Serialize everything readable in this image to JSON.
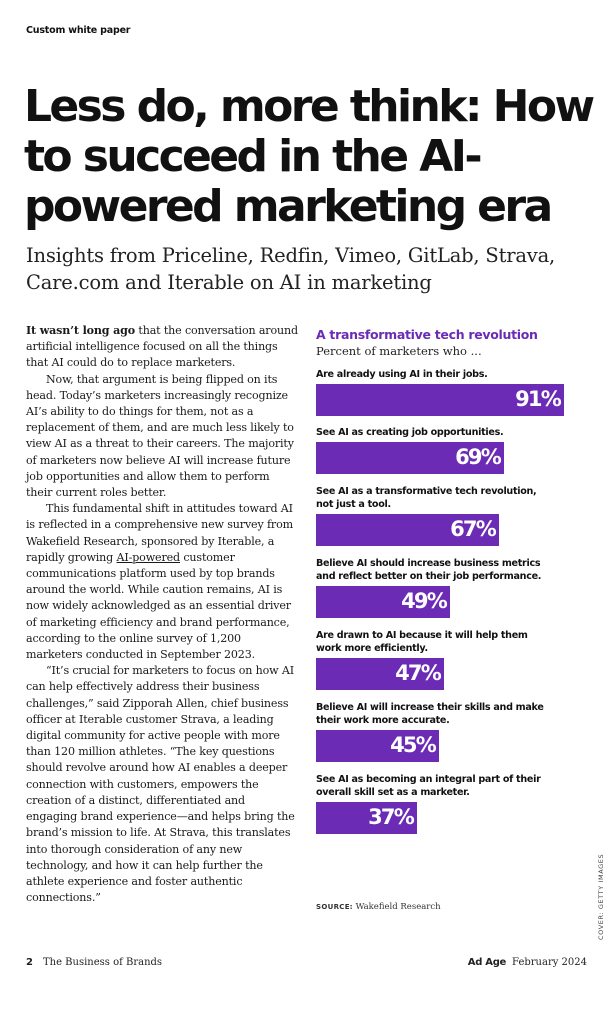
{
  "header": {
    "section_label": "Custom white paper"
  },
  "article": {
    "title": "Less do, more think: How to succeed in the AI-powered marketing era",
    "subtitle": "Insights from Priceline, Redfin, Vimeo, GitLab, Strava, Care.com and Iterable on AI in marketing",
    "p1_lead": "It wasn’t long ago",
    "p1_rest": " that the conversation around artificial intelligence focused on all the things that AI could do to replace marketers.",
    "p2": "Now, that argument is being flipped on its head. Today’s marketers increasingly recognize AI’s ability to do things for them, not as a replacement of them, and are much less likely to view AI as a threat to their careers. The majority of marketers now believe AI will increase future job opportunities and allow them to perform their current roles better.",
    "p3_before": "This fundamental shift in attitudes toward AI is reflected in a comprehensive new survey from Wakefield Research, sponsored by Iterable, a rapidly growing ",
    "p3_link": "AI-powered",
    "p3_after": " customer communications platform used by top brands around the world. While caution remains, AI is now widely acknowledged as an essential driver of marketing efficiency and brand performance, according to the online survey of 1,200 marketers conducted in September 2023.",
    "p4": "“It’s crucial for marketers to focus on how AI can help effectively address their business challenges,” said Zipporah Allen, chief business officer at Iterable customer Strava, a leading digital community for active people with more than 120 million athletes. “The key questions should revolve around how AI enables a deeper connection with customers, empowers the creation of a distinct, differentiated and engaging brand experience—and helps bring the brand’s mission to life. At Strava, this translates into thorough consideration of any new technology, and how it can help further the athlete experience and foster authentic connections.”"
  },
  "chart_data": {
    "type": "bar",
    "title": "A transformative tech revolution",
    "subtitle": "Percent of marketers who ...",
    "categories": [
      "Are already using AI in their jobs.",
      "See AI as creating job opportunities.",
      "See AI as a transformative tech revolution, not just a tool.",
      "Believe AI should increase business metrics and reflect better on their job performance.",
      "Are drawn to AI because it will help them work more efficiently.",
      "Believe AI will increase their skills and make their work more accurate.",
      "See AI as becoming an integral part of their overall skill set as a marketer."
    ],
    "values": [
      91,
      69,
      67,
      49,
      47,
      45,
      37
    ],
    "value_labels": [
      "91%",
      "69%",
      "67%",
      "49%",
      "47%",
      "45%",
      "37%"
    ],
    "orientation": "horizontal",
    "bar_color": "#6b2bb5",
    "title_color": "#6b2bb5",
    "source_label": "SOURCE:",
    "source_text": "Wakefield Research"
  },
  "credit": "COVER: GETTY IMAGES",
  "footer": {
    "page_number": "2",
    "publication_section": "The Business of Brands",
    "brand": "Ad Age",
    "date": "February 2024"
  }
}
